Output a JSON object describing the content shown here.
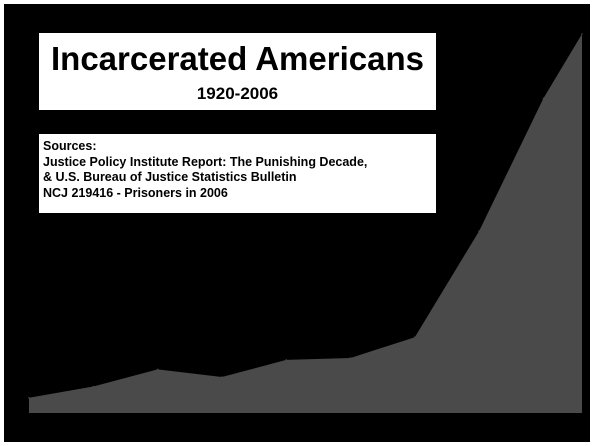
{
  "colors": {
    "background": "#000000",
    "area_fill": "#4a4a4a",
    "box_fill": "#ffffff",
    "text": "#000000"
  },
  "chart_data": {
    "type": "area",
    "title": "Incarcerated Americans",
    "subtitle": "1920-2006",
    "sources_heading": "Sources:",
    "sources": [
      "Justice Policy Institute Report: The Punishing Decade,",
      "& U.S. Bureau of Justice Statistics Bulletin",
      "NCJ 219416 - Prisoners in 2006"
    ],
    "x": [
      1920,
      1930,
      1940,
      1950,
      1960,
      1970,
      1980,
      1990,
      2000,
      2006
    ],
    "values": [
      0.04,
      0.07,
      0.115,
      0.095,
      0.14,
      0.145,
      0.2,
      0.48,
      0.83,
      1.0
    ],
    "xlim": [
      1920,
      2006
    ],
    "ylim": [
      0,
      1.0
    ],
    "xlabel": "",
    "ylabel": "",
    "grid": false,
    "axes_visible": false
  }
}
